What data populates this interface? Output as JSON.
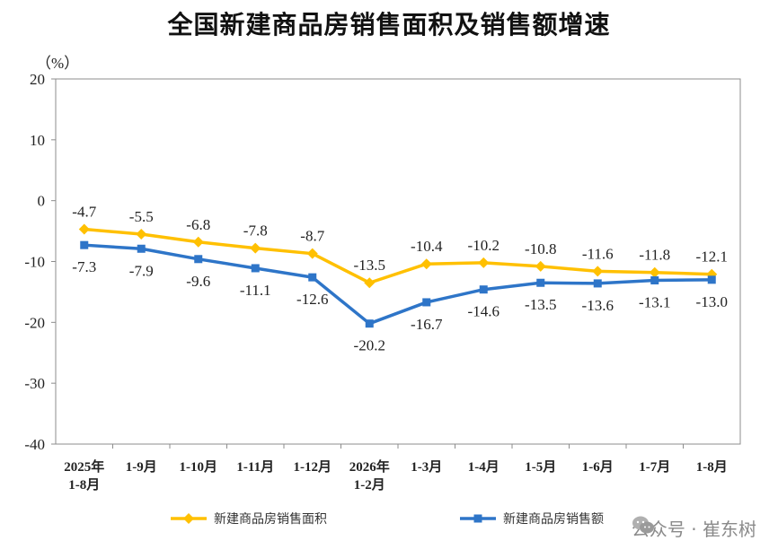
{
  "chart_data": {
    "type": "line",
    "title": "全国新建商品房销售面积及销售额增速",
    "ylabel": "（%）",
    "ylim": [
      -40,
      20
    ],
    "yticks": [
      20,
      10,
      0,
      -10,
      -20,
      -30,
      -40
    ],
    "categories": [
      [
        "2025年",
        "1-8月"
      ],
      [
        "1-9月"
      ],
      [
        "1-10月"
      ],
      [
        "1-11月"
      ],
      [
        "1-12月"
      ],
      [
        "2026年",
        "1-2月"
      ],
      [
        "1-3月"
      ],
      [
        "1-4月"
      ],
      [
        "1-5月"
      ],
      [
        "1-6月"
      ],
      [
        "1-7月"
      ],
      [
        "1-8月"
      ]
    ],
    "series": [
      {
        "name": "新建商品房销售面积",
        "color": "#FFC000",
        "marker": "diamond",
        "values": [
          -4.7,
          -5.5,
          -6.8,
          -7.8,
          -8.7,
          -13.5,
          -10.4,
          -10.2,
          -10.8,
          -11.6,
          -11.8,
          -12.1
        ],
        "labels": [
          "-4.7",
          "-5.5",
          "-6.8",
          "-7.8",
          "-8.7",
          "-13.5",
          "-10.4",
          "-10.2",
          "-10.8",
          "-11.6",
          "-11.8",
          "-12.1"
        ]
      },
      {
        "name": "新建商品房销售额",
        "color": "#2E75C8",
        "marker": "square",
        "values": [
          -7.3,
          -7.9,
          -9.6,
          -11.1,
          -12.6,
          -20.2,
          -16.7,
          -14.6,
          -13.5,
          -13.6,
          -13.1,
          -13.0
        ],
        "labels": [
          "-7.3",
          "-7.9",
          "-9.6",
          "-11.1",
          "-12.6",
          "-20.2",
          "-16.7",
          "-14.6",
          "-13.5",
          "-13.6",
          "-13.1",
          "-13.0"
        ]
      }
    ],
    "grid": false,
    "legend": "bottom"
  },
  "watermark": {
    "text": "公众号 · 崔东树",
    "icon": "wechat-icon"
  }
}
